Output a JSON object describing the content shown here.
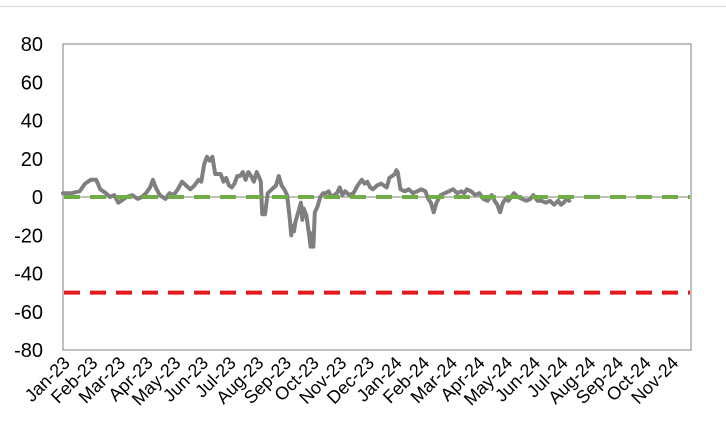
{
  "chart_data": {
    "type": "line",
    "title": "",
    "xlabel": "",
    "ylabel": "",
    "ylim": [
      -80,
      80
    ],
    "yticks": [
      80,
      60,
      40,
      20,
      0,
      -20,
      -40,
      -60,
      -80
    ],
    "categories": [
      "Jan-23",
      "Feb-23",
      "Mar-23",
      "Apr-23",
      "May-23",
      "Jun-23",
      "Jul-23",
      "Aug-23",
      "Sep-23",
      "Oct-23",
      "Nov-23",
      "Dec-23",
      "Jan-24",
      "Feb-24",
      "Mar-24",
      "Apr-24",
      "May-24",
      "Jun-24",
      "Jul-24",
      "Aug-24",
      "Sep-24",
      "Oct-24",
      "Nov-24"
    ],
    "grid": false,
    "legend": "none",
    "series": [
      {
        "role": "main",
        "color": "#7f7f7f",
        "points": [
          [
            0,
            2
          ],
          [
            0.3,
            2
          ],
          [
            0.6,
            3
          ],
          [
            0.8,
            7
          ],
          [
            1.0,
            9
          ],
          [
            1.2,
            9
          ],
          [
            1.35,
            4
          ],
          [
            1.55,
            2
          ],
          [
            1.7,
            0
          ],
          [
            1.85,
            1
          ],
          [
            2.0,
            -3
          ],
          [
            2.1,
            -2
          ],
          [
            2.3,
            0
          ],
          [
            2.5,
            1
          ],
          [
            2.7,
            -1
          ],
          [
            2.85,
            0
          ],
          [
            3.0,
            2
          ],
          [
            3.15,
            5
          ],
          [
            3.25,
            9
          ],
          [
            3.35,
            5
          ],
          [
            3.5,
            1
          ],
          [
            3.7,
            -1
          ],
          [
            3.85,
            2
          ],
          [
            4.0,
            1
          ],
          [
            4.15,
            4
          ],
          [
            4.3,
            8
          ],
          [
            4.45,
            6
          ],
          [
            4.6,
            4
          ],
          [
            4.75,
            6
          ],
          [
            4.9,
            9
          ],
          [
            5.0,
            8
          ],
          [
            5.1,
            17
          ],
          [
            5.2,
            21
          ],
          [
            5.3,
            19
          ],
          [
            5.4,
            21
          ],
          [
            5.5,
            12
          ],
          [
            5.6,
            12
          ],
          [
            5.7,
            12
          ],
          [
            5.8,
            8
          ],
          [
            5.9,
            10
          ],
          [
            6.0,
            6
          ],
          [
            6.1,
            5
          ],
          [
            6.2,
            7
          ],
          [
            6.3,
            11
          ],
          [
            6.4,
            11
          ],
          [
            6.5,
            13
          ],
          [
            6.6,
            9
          ],
          [
            6.7,
            13
          ],
          [
            6.8,
            11
          ],
          [
            6.9,
            8
          ],
          [
            7.0,
            13
          ],
          [
            7.1,
            10
          ],
          [
            7.15,
            8
          ],
          [
            7.2,
            -9
          ],
          [
            7.3,
            -9
          ],
          [
            7.4,
            2
          ],
          [
            7.55,
            4
          ],
          [
            7.7,
            6
          ],
          [
            7.8,
            11
          ],
          [
            7.9,
            6
          ],
          [
            8.0,
            4
          ],
          [
            8.1,
            1
          ],
          [
            8.2,
            -12
          ],
          [
            8.25,
            -20
          ],
          [
            8.3,
            -15
          ],
          [
            8.35,
            -18
          ],
          [
            8.4,
            -13
          ],
          [
            8.5,
            -8
          ],
          [
            8.6,
            -3
          ],
          [
            8.65,
            -12
          ],
          [
            8.7,
            -6
          ],
          [
            8.8,
            -10
          ],
          [
            8.9,
            -20
          ],
          [
            8.95,
            -26
          ],
          [
            9.0,
            -19
          ],
          [
            9.05,
            -26
          ],
          [
            9.1,
            -8
          ],
          [
            9.2,
            -5
          ],
          [
            9.3,
            0
          ],
          [
            9.4,
            2
          ],
          [
            9.5,
            2
          ],
          [
            9.6,
            3
          ],
          [
            9.7,
            0
          ],
          [
            9.8,
            1
          ],
          [
            9.9,
            2
          ],
          [
            10.0,
            5
          ],
          [
            10.1,
            1
          ],
          [
            10.2,
            3
          ],
          [
            10.35,
            1
          ],
          [
            10.5,
            2
          ],
          [
            10.65,
            6
          ],
          [
            10.8,
            9
          ],
          [
            10.9,
            7
          ],
          [
            11.0,
            8
          ],
          [
            11.1,
            5
          ],
          [
            11.2,
            4
          ],
          [
            11.35,
            6
          ],
          [
            11.5,
            7
          ],
          [
            11.6,
            6
          ],
          [
            11.7,
            5
          ],
          [
            11.8,
            10
          ],
          [
            11.9,
            11
          ],
          [
            12.0,
            12
          ],
          [
            12.05,
            14
          ],
          [
            12.1,
            13
          ],
          [
            12.2,
            4
          ],
          [
            12.35,
            3
          ],
          [
            12.5,
            4
          ],
          [
            12.65,
            2
          ],
          [
            12.8,
            3
          ],
          [
            12.95,
            4
          ],
          [
            13.1,
            3
          ],
          [
            13.2,
            -1
          ],
          [
            13.3,
            -3
          ],
          [
            13.4,
            -8
          ],
          [
            13.5,
            -3
          ],
          [
            13.65,
            1
          ],
          [
            13.8,
            2
          ],
          [
            13.95,
            3
          ],
          [
            14.1,
            4
          ],
          [
            14.25,
            2
          ],
          [
            14.4,
            3
          ],
          [
            14.5,
            2
          ],
          [
            14.6,
            4
          ],
          [
            14.75,
            3
          ],
          [
            14.9,
            1
          ],
          [
            15.05,
            2
          ],
          [
            15.2,
            -1
          ],
          [
            15.35,
            -2
          ],
          [
            15.5,
            1
          ],
          [
            15.6,
            -2
          ],
          [
            15.7,
            -4
          ],
          [
            15.8,
            -8
          ],
          [
            15.9,
            -3
          ],
          [
            16.0,
            -1
          ],
          [
            16.1,
            -2
          ],
          [
            16.2,
            0
          ],
          [
            16.3,
            2
          ],
          [
            16.45,
            0
          ],
          [
            16.6,
            -1
          ],
          [
            16.75,
            -2
          ],
          [
            16.9,
            -1
          ],
          [
            17.0,
            1
          ],
          [
            17.15,
            -2
          ],
          [
            17.3,
            -2
          ],
          [
            17.45,
            -3
          ],
          [
            17.6,
            -2
          ],
          [
            17.75,
            -4
          ],
          [
            17.9,
            -2
          ],
          [
            18.0,
            -4
          ],
          [
            18.1,
            -3
          ],
          [
            18.2,
            -1
          ],
          [
            18.3,
            -2
          ]
        ]
      },
      {
        "role": "reference-zero",
        "color": "#bfbfbf",
        "value": 0
      },
      {
        "role": "upper-threshold",
        "color": "#70ad47",
        "value": 0,
        "dash": "dashed"
      },
      {
        "role": "lower-threshold",
        "color": "#e31a1c",
        "value": -50,
        "dash": "dashed"
      }
    ]
  }
}
